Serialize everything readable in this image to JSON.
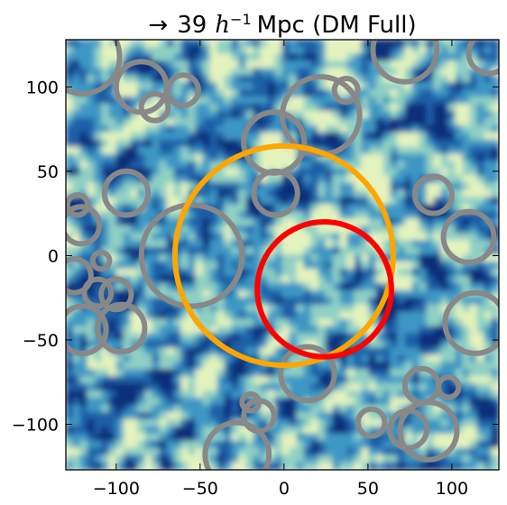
{
  "chart_data": {
    "type": "heatmap",
    "title": {
      "arrow": "→",
      "number": "39",
      "h": "h",
      "exponent": "−1",
      "rest": "Mpc (DM Full)"
    },
    "xlabel": "",
    "ylabel": "",
    "xlim": [
      -130,
      128
    ],
    "ylim": [
      -127,
      128
    ],
    "x_ticks": [
      -100,
      -50,
      0,
      50,
      100
    ],
    "y_ticks": [
      100,
      50,
      0,
      -50,
      -100
    ],
    "x_tick_labels": [
      "−100",
      "−50",
      "0",
      "50",
      "100"
    ],
    "y_tick_labels": [
      "100",
      "50",
      "0",
      "−50",
      "−100"
    ],
    "grid": false,
    "legend": "none",
    "colormap": [
      "#0d2d7a",
      "#1f5fa6",
      "#3d97c4",
      "#8fd0c4",
      "#e4f3bd"
    ],
    "highlight_circles": [
      {
        "name": "orange",
        "color": "#ffa500",
        "cx": 0,
        "cy": 0,
        "r": 65
      },
      {
        "name": "red",
        "color": "#ff0000",
        "cx": 24,
        "cy": -20,
        "r": 40
      }
    ],
    "void_circle_color": "#888888",
    "void_circles": [
      {
        "cx": -120,
        "cy": 118,
        "r": 22
      },
      {
        "cx": -85,
        "cy": 100,
        "r": 15
      },
      {
        "cx": -60,
        "cy": 98,
        "r": 9
      },
      {
        "cx": -77,
        "cy": 88,
        "r": 8
      },
      {
        "cx": 22,
        "cy": 83,
        "r": 23
      },
      {
        "cx": 37,
        "cy": 98,
        "r": 7
      },
      {
        "cx": -6,
        "cy": 67,
        "r": 18
      },
      {
        "cx": 72,
        "cy": 122,
        "r": 19
      },
      {
        "cx": 122,
        "cy": 120,
        "r": 12
      },
      {
        "cx": -94,
        "cy": 37,
        "r": 13
      },
      {
        "cx": -5,
        "cy": 37,
        "r": 13
      },
      {
        "cx": -123,
        "cy": 30,
        "r": 6
      },
      {
        "cx": -121,
        "cy": 18,
        "r": 11
      },
      {
        "cx": 89,
        "cy": 36,
        "r": 11
      },
      {
        "cx": 110,
        "cy": 11,
        "r": 15
      },
      {
        "cx": -55,
        "cy": 0,
        "r": 30
      },
      {
        "cx": -109,
        "cy": -3,
        "r": 5
      },
      {
        "cx": -125,
        "cy": -12,
        "r": 10
      },
      {
        "cx": -111,
        "cy": -22,
        "r": 8
      },
      {
        "cx": -100,
        "cy": -23,
        "r": 9
      },
      {
        "cx": 114,
        "cy": -40,
        "r": 18
      },
      {
        "cx": -120,
        "cy": -44,
        "r": 14
      },
      {
        "cx": -97,
        "cy": -43,
        "r": 14
      },
      {
        "cx": 14,
        "cy": -70,
        "r": 16
      },
      {
        "cx": 82,
        "cy": -77,
        "r": 10
      },
      {
        "cx": 98,
        "cy": -78,
        "r": 6
      },
      {
        "cx": -20,
        "cy": -87,
        "r": 5
      },
      {
        "cx": -15,
        "cy": -95,
        "r": 9
      },
      {
        "cx": 52,
        "cy": -99,
        "r": 8
      },
      {
        "cx": 74,
        "cy": -103,
        "r": 11
      },
      {
        "cx": 86,
        "cy": -104,
        "r": 17
      },
      {
        "cx": -28,
        "cy": -118,
        "r": 19
      }
    ]
  }
}
